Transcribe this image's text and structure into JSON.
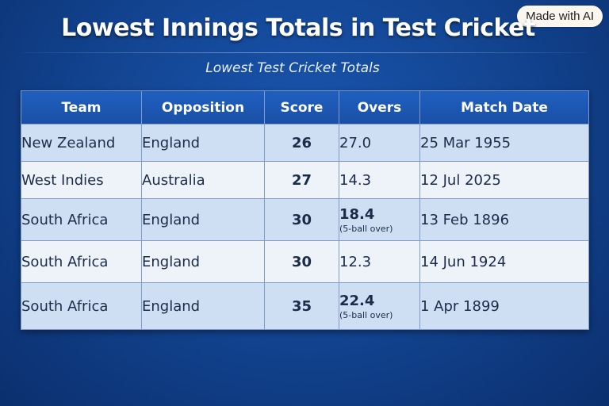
{
  "badge": "Made with AI",
  "title": "Lowest Innings Totals in Test Cricket",
  "subtitle": "Lowest Test Cricket Totals",
  "table": {
    "headers": [
      "Team",
      "Opposition",
      "Score",
      "Overs",
      "Match Date"
    ],
    "rows": [
      {
        "team": "New Zealand",
        "opposition": "England",
        "score": "26",
        "overs": "27.0",
        "overs_note": "",
        "date": "25 Mar 1955"
      },
      {
        "team": "West Indies",
        "opposition": "Australia",
        "score": "27",
        "overs": "14.3",
        "overs_note": "",
        "date": "12 Jul 2025"
      },
      {
        "team": "South Africa",
        "opposition": "England",
        "score": "30",
        "overs": "18.4",
        "overs_note": "(5-ball over)",
        "date": "13 Feb 1896"
      },
      {
        "team": "South Africa",
        "opposition": "England",
        "score": "30",
        "overs": "12.3",
        "overs_note": "",
        "date": "14 Jun 1924"
      },
      {
        "team": "South Africa",
        "opposition": "England",
        "score": "35",
        "overs": "22.4",
        "overs_note": "(5-ball over)",
        "date": "1 Apr 1899"
      }
    ]
  },
  "colors": {
    "background": "#134694",
    "header_fill": "#1c57b3",
    "row_shaded": "#cfdff3",
    "row_light": "#eef3fa",
    "text": "#1a2c4a"
  }
}
